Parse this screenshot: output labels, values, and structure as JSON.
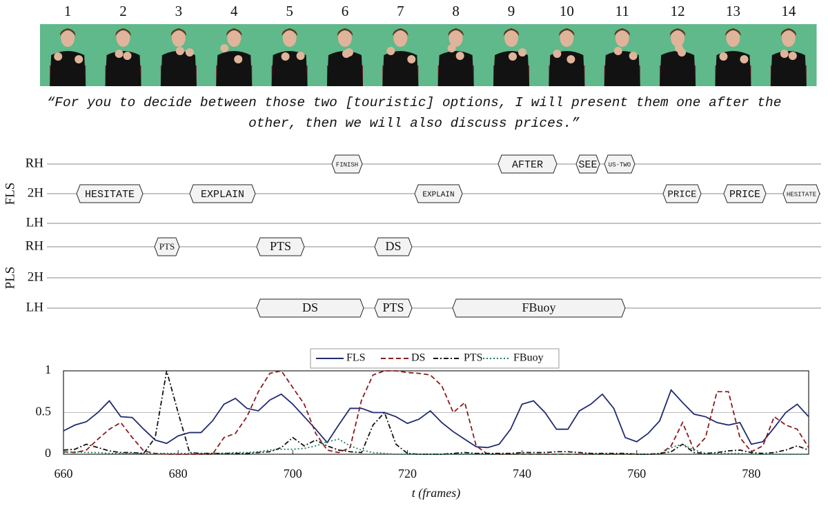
{
  "frames": {
    "labels": [
      1,
      2,
      3,
      4,
      5,
      6,
      7,
      8,
      9,
      10,
      11,
      12,
      13,
      14
    ]
  },
  "caption": "“For you to decide between those two [touristic] options, I will present them one after the other, then we will also discuss prices.”",
  "tiers": {
    "groups": [
      {
        "name": "FLS",
        "rows": [
          {
            "name": "RH",
            "segments": [
              "FINISH",
              "AFTER",
              "SEE",
              "US-TWO"
            ]
          },
          {
            "name": "2H",
            "segments": [
              "HESITATE",
              "EXPLAIN",
              "EXPLAIN",
              "PRICE",
              "PRICE",
              "HESITATE"
            ]
          },
          {
            "name": "LH",
            "segments": []
          }
        ]
      },
      {
        "name": "PLS",
        "rows": [
          {
            "name": "RH",
            "segments": [
              "PTS",
              "PTS",
              "DS"
            ]
          },
          {
            "name": "2H",
            "segments": []
          },
          {
            "name": "LH",
            "segments": [
              "DS",
              "PTS",
              "FBuoy"
            ]
          }
        ]
      }
    ]
  },
  "chart_data": {
    "type": "line",
    "x_label": "t (frames)",
    "x": [
      660,
      662,
      664,
      666,
      668,
      670,
      672,
      674,
      676,
      678,
      680,
      682,
      684,
      686,
      688,
      690,
      692,
      694,
      696,
      698,
      700,
      702,
      704,
      706,
      708,
      710,
      712,
      714,
      716,
      718,
      720,
      722,
      724,
      726,
      728,
      730,
      732,
      734,
      736,
      738,
      740,
      742,
      744,
      746,
      748,
      750,
      752,
      754,
      756,
      758,
      760,
      762,
      764,
      766,
      768,
      770,
      772,
      774,
      776,
      778,
      780,
      782,
      784,
      786,
      788,
      790
    ],
    "series": [
      {
        "name": "FLS",
        "color": "#1f2a6e",
        "dash": "",
        "values": [
          0.28,
          0.35,
          0.39,
          0.5,
          0.64,
          0.45,
          0.44,
          0.3,
          0.17,
          0.13,
          0.22,
          0.26,
          0.26,
          0.4,
          0.6,
          0.67,
          0.55,
          0.52,
          0.65,
          0.72,
          0.6,
          0.45,
          0.3,
          0.14,
          0.35,
          0.55,
          0.55,
          0.5,
          0.5,
          0.45,
          0.37,
          0.42,
          0.52,
          0.38,
          0.27,
          0.18,
          0.09,
          0.08,
          0.12,
          0.3,
          0.6,
          0.64,
          0.5,
          0.3,
          0.3,
          0.52,
          0.6,
          0.72,
          0.55,
          0.2,
          0.15,
          0.25,
          0.4,
          0.77,
          0.62,
          0.48,
          0.45,
          0.38,
          0.35,
          0.38,
          0.12,
          0.15,
          0.32,
          0.5,
          0.6,
          0.45
        ]
      },
      {
        "name": "DS",
        "color": "#8b1a1a",
        "dash": "7 4",
        "values": [
          0.03,
          0.02,
          0.05,
          0.18,
          0.3,
          0.38,
          0.2,
          0.04,
          0.01,
          0,
          0,
          0,
          0,
          0,
          0.2,
          0.25,
          0.45,
          0.75,
          0.97,
          1.0,
          0.8,
          0.6,
          0.25,
          0.05,
          0.02,
          0.08,
          0.65,
          0.95,
          1.0,
          1.0,
          0.98,
          0.97,
          0.95,
          0.82,
          0.5,
          0.62,
          0.1,
          0,
          0,
          0,
          0,
          0,
          0,
          0,
          0,
          0,
          0,
          0,
          0,
          0,
          0,
          0,
          0,
          0.1,
          0.38,
          0.05,
          0.2,
          0.75,
          0.75,
          0.2,
          0.03,
          0.1,
          0.45,
          0.35,
          0.3,
          0.08
        ]
      },
      {
        "name": "PTS",
        "color": "#111111",
        "dash": "7 3 2 3",
        "values": [
          0.05,
          0.06,
          0.12,
          0.08,
          0.04,
          0.02,
          0.02,
          0.01,
          0.2,
          1.0,
          0.5,
          0.02,
          0.01,
          0.01,
          0.01,
          0.01,
          0.01,
          0.02,
          0.03,
          0.08,
          0.2,
          0.1,
          0.17,
          0.1,
          0.05,
          0.03,
          0.02,
          0.35,
          0.5,
          0.12,
          0.01,
          0,
          0,
          0,
          0.01,
          0.02,
          0.01,
          0.01,
          0.01,
          0.01,
          0.02,
          0.02,
          0.02,
          0.03,
          0.03,
          0.02,
          0.01,
          0.01,
          0.01,
          0.01,
          0,
          0,
          0.01,
          0.03,
          0.12,
          0.02,
          0.01,
          0.02,
          0.04,
          0.05,
          0.02,
          0.01,
          0.02,
          0.05,
          0.1,
          0.05
        ]
      },
      {
        "name": "FBuoy",
        "color": "#1c7a5a",
        "dash": "2 3",
        "values": [
          0.02,
          0.03,
          0.02,
          0.02,
          0.01,
          0.01,
          0.01,
          0.01,
          0.01,
          0.01,
          0.01,
          0.01,
          0.01,
          0.01,
          0.01,
          0.02,
          0.02,
          0.03,
          0.05,
          0.06,
          0.06,
          0.07,
          0.1,
          0.15,
          0.18,
          0.1,
          0.05,
          0.02,
          0.01,
          0,
          0,
          0,
          0,
          0,
          0,
          0,
          0,
          0,
          0,
          0,
          0,
          0,
          0,
          0,
          0,
          0,
          0,
          0,
          0,
          0,
          0,
          0,
          0,
          0.08,
          0.12,
          0.05,
          0.01,
          0.01,
          0.01,
          0.01,
          0,
          0,
          0,
          0,
          0,
          0
        ]
      }
    ],
    "xlim": [
      660,
      790
    ],
    "ylim": [
      0,
      1
    ],
    "xticks": [
      660,
      680,
      700,
      720,
      740,
      760,
      780
    ],
    "yticks": [
      0,
      0.5,
      1
    ],
    "grid": true
  }
}
